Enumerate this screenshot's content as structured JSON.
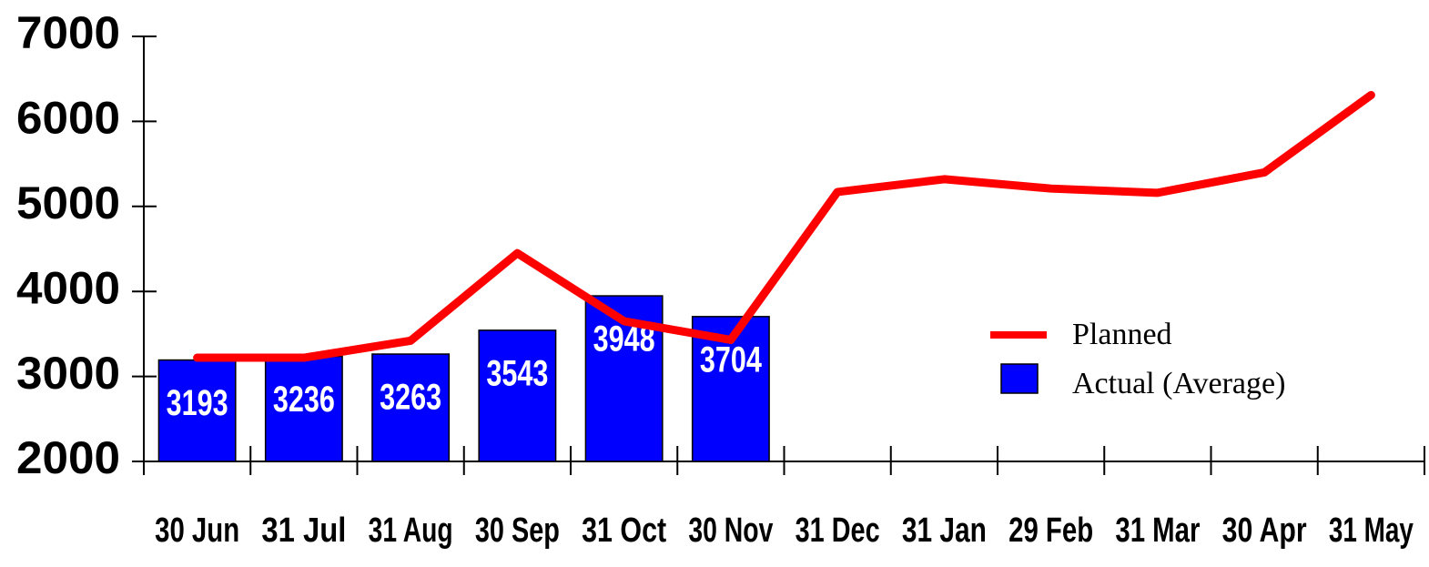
{
  "chart_data": {
    "type": "bar-line",
    "categories": [
      "30 Jun",
      "31 Jul",
      "31 Aug",
      "30 Sep",
      "31 Oct",
      "30 Nov",
      "31 Dec",
      "31 Jan",
      "29 Feb",
      "31 Mar",
      "30 Apr",
      "31 May"
    ],
    "series": [
      {
        "name": "Planned",
        "type": "line",
        "color": "#ff0000",
        "values": [
          3220,
          3220,
          3420,
          4450,
          3650,
          3430,
          5170,
          5320,
          5210,
          5160,
          5400,
          6310
        ]
      },
      {
        "name": "Actual (Average)",
        "type": "bar",
        "color": "#0000ff",
        "values": [
          3193,
          3236,
          3263,
          3543,
          3948,
          3704,
          null,
          null,
          null,
          null,
          null,
          null
        ]
      }
    ],
    "ylim": [
      2000,
      7000
    ],
    "yticks": [
      2000,
      3000,
      4000,
      5000,
      6000,
      7000
    ],
    "legend": "right"
  }
}
